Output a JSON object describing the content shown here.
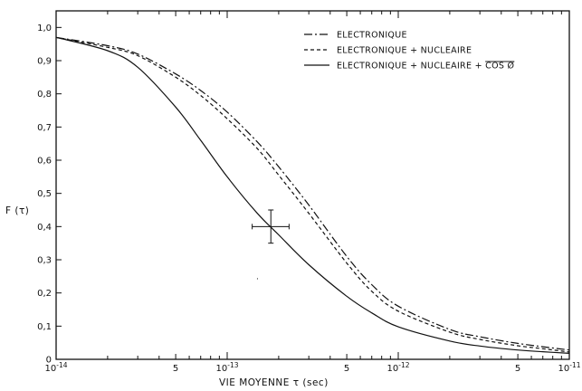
{
  "chart_data": {
    "type": "line",
    "title": "",
    "xlabel": "VIE  MOYENNE  τ  (sec)",
    "ylabel": "F (τ)",
    "x_scale": "log",
    "xlim": [
      1e-14,
      1e-11
    ],
    "ylim": [
      0,
      1.05
    ],
    "grid": false,
    "legend_position": "top-right",
    "y_ticks": [
      {
        "value": 0,
        "label": "0"
      },
      {
        "value": 0.1,
        "label": "0,1"
      },
      {
        "value": 0.2,
        "label": "0,2"
      },
      {
        "value": 0.3,
        "label": "0,3"
      },
      {
        "value": 0.4,
        "label": "0,4"
      },
      {
        "value": 0.5,
        "label": "0,5"
      },
      {
        "value": 0.6,
        "label": "0,6"
      },
      {
        "value": 0.7,
        "label": "0,7"
      },
      {
        "value": 0.8,
        "label": "0,8"
      },
      {
        "value": 0.9,
        "label": "0,9"
      },
      {
        "value": 1.0,
        "label": "1,0"
      }
    ],
    "x_tick_labels": [
      {
        "value": 1e-14,
        "base": "10",
        "exp": "-14"
      },
      {
        "value": 5e-14,
        "base": "5",
        "exp": ""
      },
      {
        "value": 1e-13,
        "base": "10",
        "exp": "-13"
      },
      {
        "value": 5e-13,
        "base": "5",
        "exp": ""
      },
      {
        "value": 1e-12,
        "base": "10",
        "exp": "-12"
      },
      {
        "value": 5e-12,
        "base": "5",
        "exp": ""
      },
      {
        "value": 1e-11,
        "base": "10",
        "exp": "-11"
      }
    ],
    "series": [
      {
        "name": "ELECTRONIQUE",
        "line_style": "dash-dot",
        "x": [
          1e-14,
          2e-14,
          3e-14,
          5e-14,
          7e-14,
          1e-13,
          1.5e-13,
          2e-13,
          3e-13,
          5e-13,
          7e-13,
          1e-12,
          2e-12,
          3e-12,
          5e-12,
          7e-12,
          1e-11
        ],
        "y": [
          0.97,
          0.945,
          0.92,
          0.86,
          0.81,
          0.745,
          0.655,
          0.58,
          0.465,
          0.31,
          0.225,
          0.16,
          0.09,
          0.068,
          0.048,
          0.038,
          0.028
        ]
      },
      {
        "name": "ELECTRONIQUE + NUCLEAIRE",
        "line_style": "dashed",
        "x": [
          1e-14,
          2e-14,
          3e-14,
          5e-14,
          7e-14,
          1e-13,
          1.5e-13,
          2e-13,
          3e-13,
          5e-13,
          7e-13,
          1e-12,
          2e-12,
          3e-12,
          5e-12,
          7e-12,
          1e-11
        ],
        "y": [
          0.97,
          0.94,
          0.915,
          0.85,
          0.795,
          0.725,
          0.635,
          0.555,
          0.44,
          0.29,
          0.205,
          0.145,
          0.082,
          0.06,
          0.041,
          0.032,
          0.022
        ]
      },
      {
        "name": "ELECTRONIQUE + NUCLEAIRE + ",
        "name_suffix": "COS Ø",
        "line_style": "solid",
        "x": [
          1e-14,
          2e-14,
          3e-14,
          5e-14,
          7e-14,
          1e-13,
          1.5e-13,
          2e-13,
          3e-13,
          5e-13,
          7e-13,
          1e-12,
          2e-12,
          3e-12,
          5e-12,
          7e-12,
          1e-11
        ],
        "y": [
          0.97,
          0.93,
          0.88,
          0.76,
          0.66,
          0.55,
          0.44,
          0.375,
          0.285,
          0.19,
          0.14,
          0.098,
          0.055,
          0.04,
          0.028,
          0.023,
          0.018
        ]
      }
    ],
    "data_point": {
      "x": 1.8e-13,
      "y": 0.4,
      "x_err": [
        1.4e-13,
        2.3e-13
      ],
      "y_err": [
        0.35,
        0.45
      ]
    }
  }
}
